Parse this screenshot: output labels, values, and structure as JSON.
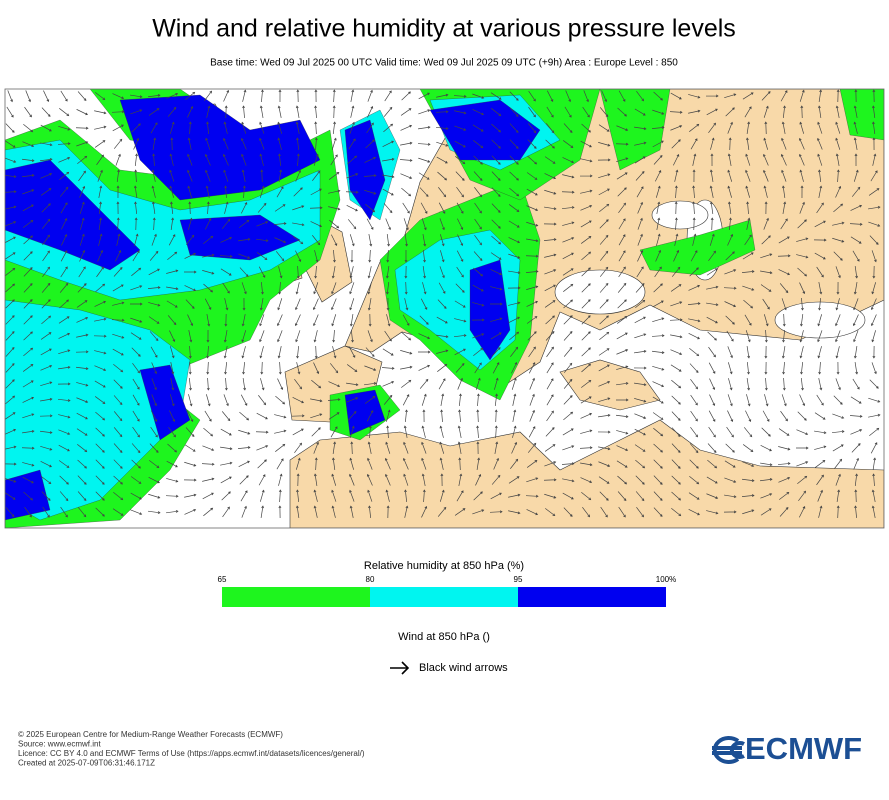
{
  "header": {
    "title": "Wind and relative humidity at various pressure levels",
    "subtitle": "Base time: Wed 09 Jul 2025 00 UTC Valid time: Wed 09 Jul 2025 09 UTC (+9h) Area : Europe Level : 850"
  },
  "humidity_legend": {
    "title": "Relative humidity at 850 hPa (%)",
    "ticks": [
      "65",
      "80",
      "95",
      "100%"
    ],
    "colors": [
      "#1ef51e",
      "#00f5f0",
      "#0000f0"
    ]
  },
  "wind_legend": {
    "title": "Wind at 850 hPa ()",
    "arrow_label": "Black wind arrows"
  },
  "footer": {
    "lines": [
      "© 2025 European Centre for Medium-Range Weather Forecasts (ECMWF)",
      "Source: www.ecmwf.int",
      "Licence: CC BY 4.0 and ECMWF Terms of Use (https://apps.ecmwf.int/datasets/licences/general/)",
      "Created at 2025-07-09T06:31:46.171Z"
    ],
    "logo": "ECMWF"
  }
}
